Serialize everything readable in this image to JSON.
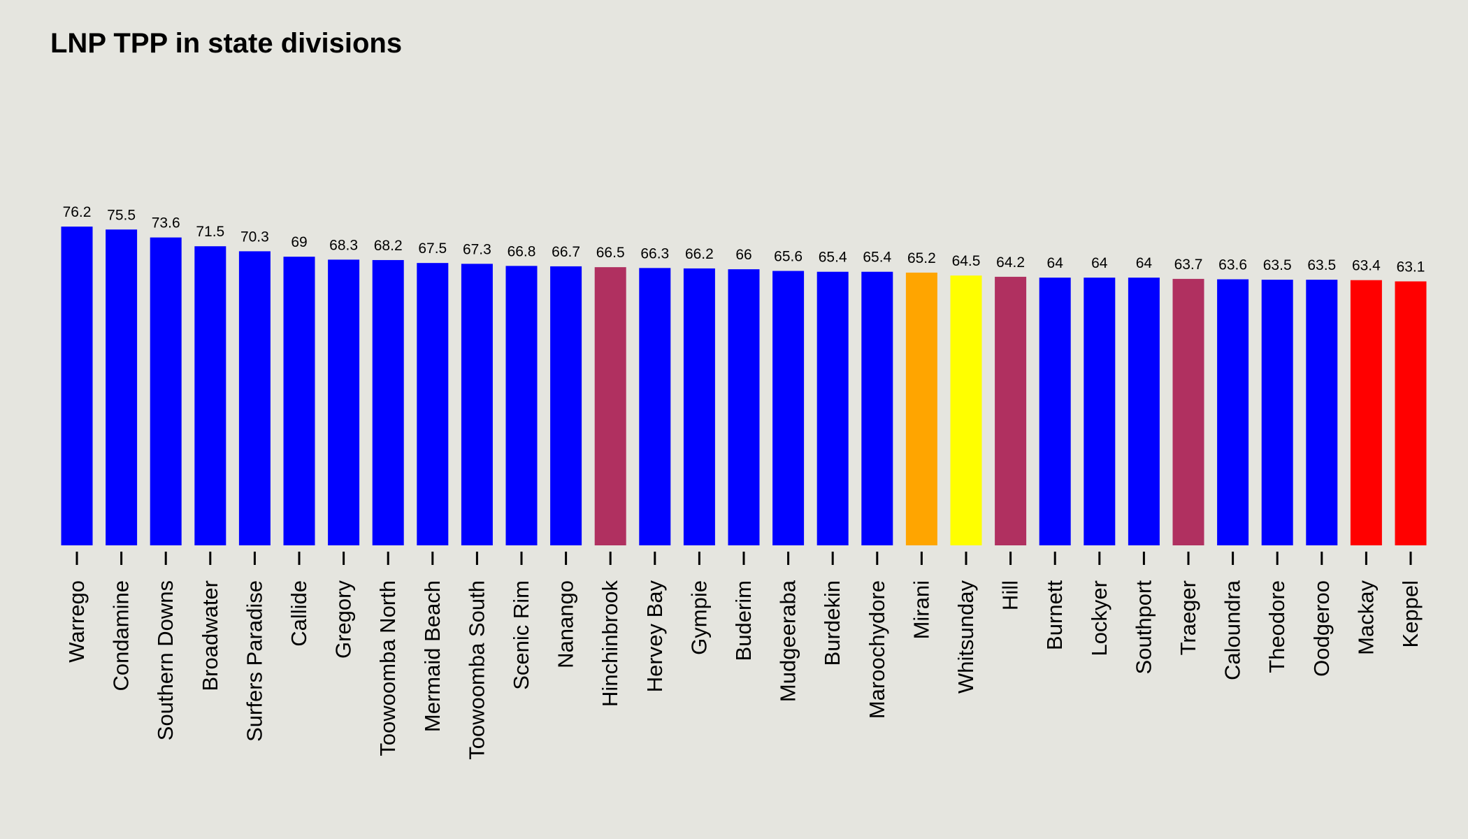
{
  "chart_data": {
    "type": "bar",
    "title": "LNP TPP in state divisions",
    "xlabel": "",
    "ylabel": "",
    "ylim": [
      0,
      100
    ],
    "grid": false,
    "legend": "none",
    "categories": [
      "Warrego",
      "Condamine",
      "Southern Downs",
      "Broadwater",
      "Surfers Paradise",
      "Callide",
      "Gregory",
      "Toowoomba North",
      "Mermaid Beach",
      "Toowoomba South",
      "Scenic Rim",
      "Nanango",
      "Hinchinbrook",
      "Hervey Bay",
      "Gympie",
      "Buderim",
      "Mudgeeraba",
      "Burdekin",
      "Maroochydore",
      "Mirani",
      "Whitsunday",
      "Hill",
      "Burnett",
      "Lockyer",
      "Southport",
      "Traeger",
      "Caloundra",
      "Theodore",
      "Oodgeroo",
      "Mackay",
      "Keppel"
    ],
    "values": [
      76.2,
      75.5,
      73.6,
      71.5,
      70.3,
      69,
      68.3,
      68.2,
      67.5,
      67.3,
      66.8,
      66.7,
      66.5,
      66.3,
      66.2,
      66,
      65.6,
      65.4,
      65.4,
      65.2,
      64.5,
      64.2,
      64,
      64,
      64,
      63.7,
      63.6,
      63.5,
      63.5,
      63.4,
      63.1
    ],
    "value_labels": [
      "76.2",
      "75.5",
      "73.6",
      "71.5",
      "70.3",
      "69",
      "68.3",
      "68.2",
      "67.5",
      "67.3",
      "66.8",
      "66.7",
      "66.5",
      "66.3",
      "66.2",
      "66",
      "65.6",
      "65.4",
      "65.4",
      "65.2",
      "64.5",
      "64.2",
      "64",
      "64",
      "64",
      "63.7",
      "63.6",
      "63.5",
      "63.5",
      "63.4",
      "63.1"
    ],
    "colors": [
      "#0000ff",
      "#0000ff",
      "#0000ff",
      "#0000ff",
      "#0000ff",
      "#0000ff",
      "#0000ff",
      "#0000ff",
      "#0000ff",
      "#0000ff",
      "#0000ff",
      "#0000ff",
      "#b03060",
      "#0000ff",
      "#0000ff",
      "#0000ff",
      "#0000ff",
      "#0000ff",
      "#0000ff",
      "#ffa500",
      "#ffff00",
      "#b03060",
      "#0000ff",
      "#0000ff",
      "#0000ff",
      "#b03060",
      "#0000ff",
      "#0000ff",
      "#0000ff",
      "#ff0000",
      "#ff0000"
    ]
  }
}
